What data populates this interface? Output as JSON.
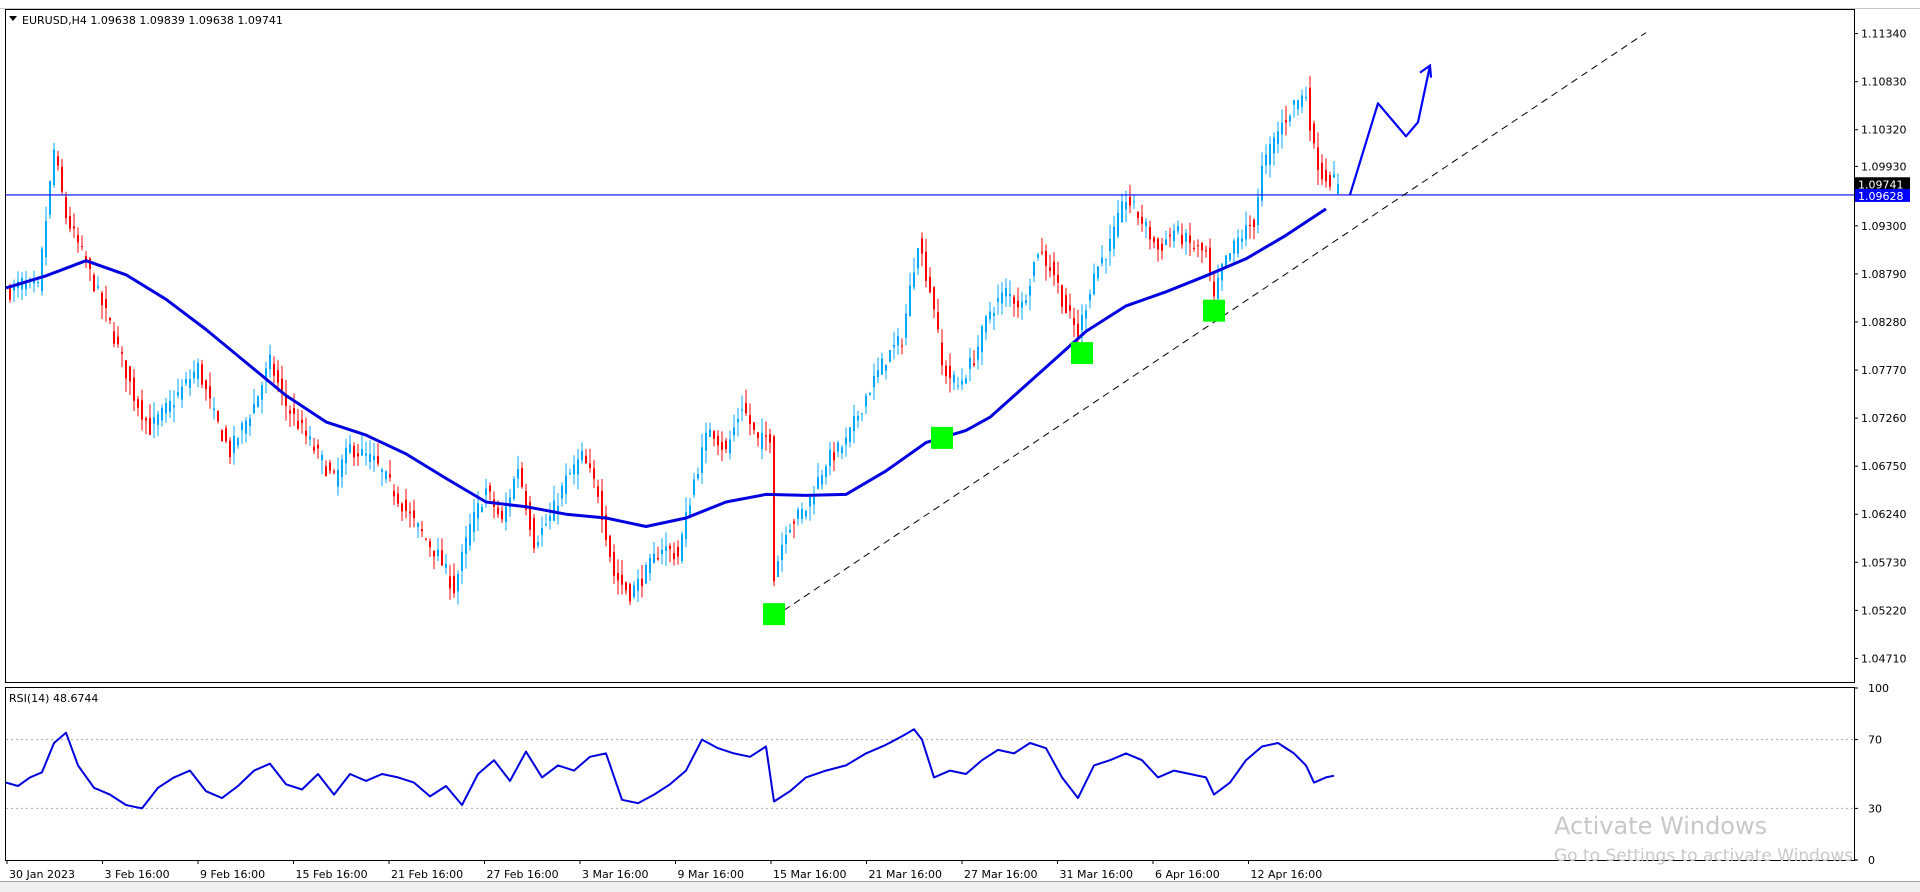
{
  "header": {
    "symbol_line": "EURUSD,H4  1.09638 1.09839 1.09638 1.09741"
  },
  "rsi_header": "RSI(14) 48.6744",
  "price_badges": {
    "last_price": "1.09741",
    "hline_price": "1.09628"
  },
  "watermark": {
    "title": "Activate Windows",
    "subtitle": "Go to Settings to activate Windows."
  },
  "colors": {
    "bull": "#00a8ff",
    "bear": "#ff0000",
    "ma": "#0000e0",
    "hline": "#0000ff",
    "marker": "#00ff00",
    "rsi": "#0000e0"
  },
  "chart_data": [
    {
      "type": "candlestick",
      "symbol": "EURUSD",
      "timeframe": "H4",
      "y_ticks": [
        "1.11340",
        "1.10830",
        "1.10320",
        "1.09930",
        "1.09300",
        "1.08790",
        "1.08280",
        "1.07770",
        "1.07260",
        "1.06750",
        "1.06240",
        "1.05730",
        "1.05220",
        "1.04710"
      ],
      "ylim": [
        1.0446,
        1.1159
      ],
      "x_ticks": [
        "30 Jan 2023",
        "3 Feb 16:00",
        "9 Feb 16:00",
        "15 Feb 16:00",
        "21 Feb 16:00",
        "27 Feb 16:00",
        "3 Mar 16:00",
        "9 Mar 16:00",
        "15 Mar 16:00",
        "21 Mar 16:00",
        "27 Mar 16:00",
        "31 Mar 16:00",
        "6 Apr 16:00",
        "12 Apr 16:00"
      ],
      "close_path": [
        [
          0,
          1.0858
        ],
        [
          4,
          1.0869
        ],
        [
          8,
          1.0863
        ],
        [
          12,
          1.101
        ],
        [
          15,
          1.094
        ],
        [
          20,
          1.089
        ],
        [
          26,
          1.0825
        ],
        [
          32,
          1.075
        ],
        [
          36,
          1.0715
        ],
        [
          42,
          1.0745
        ],
        [
          48,
          1.078
        ],
        [
          52,
          1.0728
        ],
        [
          56,
          1.069
        ],
        [
          62,
          1.074
        ],
        [
          66,
          1.0785
        ],
        [
          70,
          1.074
        ],
        [
          76,
          1.07
        ],
        [
          82,
          1.066
        ],
        [
          86,
          1.0695
        ],
        [
          92,
          1.068
        ],
        [
          96,
          1.0655
        ],
        [
          102,
          1.0615
        ],
        [
          108,
          1.058
        ],
        [
          112,
          1.0545
        ],
        [
          116,
          1.061
        ],
        [
          120,
          1.065
        ],
        [
          124,
          1.0615
        ],
        [
          128,
          1.0675
        ],
        [
          132,
          1.0595
        ],
        [
          136,
          1.062
        ],
        [
          140,
          1.066
        ],
        [
          144,
          1.0685
        ],
        [
          148,
          1.0648
        ],
        [
          152,
          1.056
        ],
        [
          156,
          1.054
        ],
        [
          160,
          1.0562
        ],
        [
          164,
          1.059
        ],
        [
          168,
          1.058
        ],
        [
          172,
          1.066
        ],
        [
          176,
          1.0718
        ],
        [
          180,
          1.069
        ],
        [
          184,
          1.074
        ],
        [
          188,
          1.07
        ],
        [
          191,
          1.0708
        ],
        [
          192,
          1.056
        ],
        [
          195,
          1.061
        ],
        [
          200,
          1.063
        ],
        [
          205,
          1.068
        ],
        [
          210,
          1.07
        ],
        [
          215,
          1.075
        ],
        [
          220,
          1.079
        ],
        [
          224,
          1.081
        ],
        [
          228,
          1.0915
        ],
        [
          230,
          1.088
        ],
        [
          232,
          1.0845
        ],
        [
          234,
          1.078
        ],
        [
          238,
          1.076
        ],
        [
          242,
          1.079
        ],
        [
          246,
          1.084
        ],
        [
          250,
          1.086
        ],
        [
          254,
          1.0845
        ],
        [
          258,
          1.0905
        ],
        [
          262,
          1.088
        ],
        [
          265,
          1.084
        ],
        [
          268,
          1.0815
        ],
        [
          272,
          1.088
        ],
        [
          276,
          1.091
        ],
        [
          280,
          1.096
        ],
        [
          284,
          1.0935
        ],
        [
          288,
          1.0905
        ],
        [
          292,
          1.0925
        ],
        [
          296,
          1.091
        ],
        [
          300,
          1.09
        ],
        [
          302,
          1.085
        ],
        [
          304,
          1.0885
        ],
        [
          308,
          1.0915
        ],
        [
          312,
          1.0935
        ],
        [
          314,
          1.099
        ],
        [
          318,
          1.103
        ],
        [
          322,
          1.106
        ],
        [
          325,
          1.107
        ],
        [
          327,
          1.101
        ],
        [
          329,
          1.0985
        ],
        [
          331,
          1.098
        ],
        [
          333,
          1.0974
        ]
      ],
      "moving_average": [
        [
          0,
          1.0864
        ],
        [
          10,
          1.0877
        ],
        [
          20,
          1.0893
        ],
        [
          30,
          1.0878
        ],
        [
          40,
          1.0852
        ],
        [
          50,
          1.082
        ],
        [
          60,
          1.0785
        ],
        [
          70,
          1.075
        ],
        [
          80,
          1.0722
        ],
        [
          90,
          1.0708
        ],
        [
          100,
          1.0688
        ],
        [
          110,
          1.0662
        ],
        [
          120,
          1.0637
        ],
        [
          130,
          1.0632
        ],
        [
          140,
          1.0624
        ],
        [
          150,
          1.062
        ],
        [
          160,
          1.0611
        ],
        [
          170,
          1.062
        ],
        [
          180,
          1.0637
        ],
        [
          190,
          1.0645
        ],
        [
          200,
          1.0644
        ],
        [
          210,
          1.0645
        ],
        [
          220,
          1.067
        ],
        [
          230,
          1.07
        ],
        [
          240,
          1.0713
        ],
        [
          246,
          1.0727
        ],
        [
          250,
          1.0742
        ],
        [
          260,
          1.078
        ],
        [
          270,
          1.0818
        ],
        [
          280,
          1.0845
        ],
        [
          290,
          1.086
        ],
        [
          300,
          1.0877
        ],
        [
          310,
          1.0895
        ],
        [
          320,
          1.092
        ],
        [
          330,
          1.0948
        ]
      ],
      "horizontal_line": 1.09628,
      "trendline": [
        [
          192,
          1.0515
        ],
        [
          410,
          1.1135
        ]
      ],
      "markers": [
        [
          192,
          1.0518
        ],
        [
          234,
          1.0705
        ],
        [
          269,
          1.0795
        ],
        [
          302,
          1.084
        ]
      ],
      "projection_arrow": [
        [
          336,
          1.0963
        ],
        [
          343,
          1.106
        ],
        [
          350,
          1.1025
        ],
        [
          353,
          1.104
        ],
        [
          356,
          1.11
        ]
      ]
    },
    {
      "type": "line",
      "name": "RSI(14)",
      "value": 48.6744,
      "y_ticks": [
        "100",
        "70",
        "30",
        "0"
      ],
      "ylim": [
        0,
        100
      ],
      "levels": [
        70,
        30
      ],
      "values": [
        [
          0,
          45
        ],
        [
          3,
          43
        ],
        [
          6,
          48
        ],
        [
          9,
          51
        ],
        [
          12,
          68
        ],
        [
          15,
          74
        ],
        [
          18,
          55
        ],
        [
          22,
          42
        ],
        [
          26,
          38
        ],
        [
          30,
          32
        ],
        [
          34,
          30
        ],
        [
          38,
          42
        ],
        [
          42,
          48
        ],
        [
          46,
          52
        ],
        [
          50,
          40
        ],
        [
          54,
          36
        ],
        [
          58,
          43
        ],
        [
          62,
          52
        ],
        [
          66,
          56
        ],
        [
          70,
          44
        ],
        [
          74,
          41
        ],
        [
          78,
          50
        ],
        [
          82,
          38
        ],
        [
          86,
          50
        ],
        [
          90,
          46
        ],
        [
          94,
          50
        ],
        [
          98,
          48
        ],
        [
          102,
          45
        ],
        [
          106,
          37
        ],
        [
          110,
          43
        ],
        [
          114,
          32
        ],
        [
          118,
          50
        ],
        [
          122,
          58
        ],
        [
          126,
          46
        ],
        [
          130,
          63
        ],
        [
          134,
          48
        ],
        [
          138,
          55
        ],
        [
          142,
          52
        ],
        [
          146,
          60
        ],
        [
          150,
          62
        ],
        [
          154,
          35
        ],
        [
          158,
          33
        ],
        [
          162,
          38
        ],
        [
          166,
          44
        ],
        [
          170,
          52
        ],
        [
          174,
          70
        ],
        [
          178,
          65
        ],
        [
          182,
          62
        ],
        [
          186,
          60
        ],
        [
          190,
          66
        ],
        [
          192,
          34
        ],
        [
          196,
          40
        ],
        [
          200,
          48
        ],
        [
          205,
          52
        ],
        [
          210,
          55
        ],
        [
          215,
          62
        ],
        [
          220,
          67
        ],
        [
          224,
          72
        ],
        [
          227,
          76
        ],
        [
          229,
          70
        ],
        [
          232,
          48
        ],
        [
          236,
          52
        ],
        [
          240,
          50
        ],
        [
          244,
          58
        ],
        [
          248,
          64
        ],
        [
          252,
          62
        ],
        [
          256,
          68
        ],
        [
          260,
          65
        ],
        [
          264,
          48
        ],
        [
          268,
          36
        ],
        [
          272,
          55
        ],
        [
          276,
          58
        ],
        [
          280,
          62
        ],
        [
          284,
          58
        ],
        [
          288,
          48
        ],
        [
          292,
          52
        ],
        [
          296,
          50
        ],
        [
          300,
          48
        ],
        [
          302,
          38
        ],
        [
          306,
          45
        ],
        [
          310,
          58
        ],
        [
          314,
          66
        ],
        [
          318,
          68
        ],
        [
          322,
          62
        ],
        [
          325,
          55
        ],
        [
          327,
          45
        ],
        [
          330,
          48
        ],
        [
          332,
          49
        ]
      ]
    }
  ]
}
